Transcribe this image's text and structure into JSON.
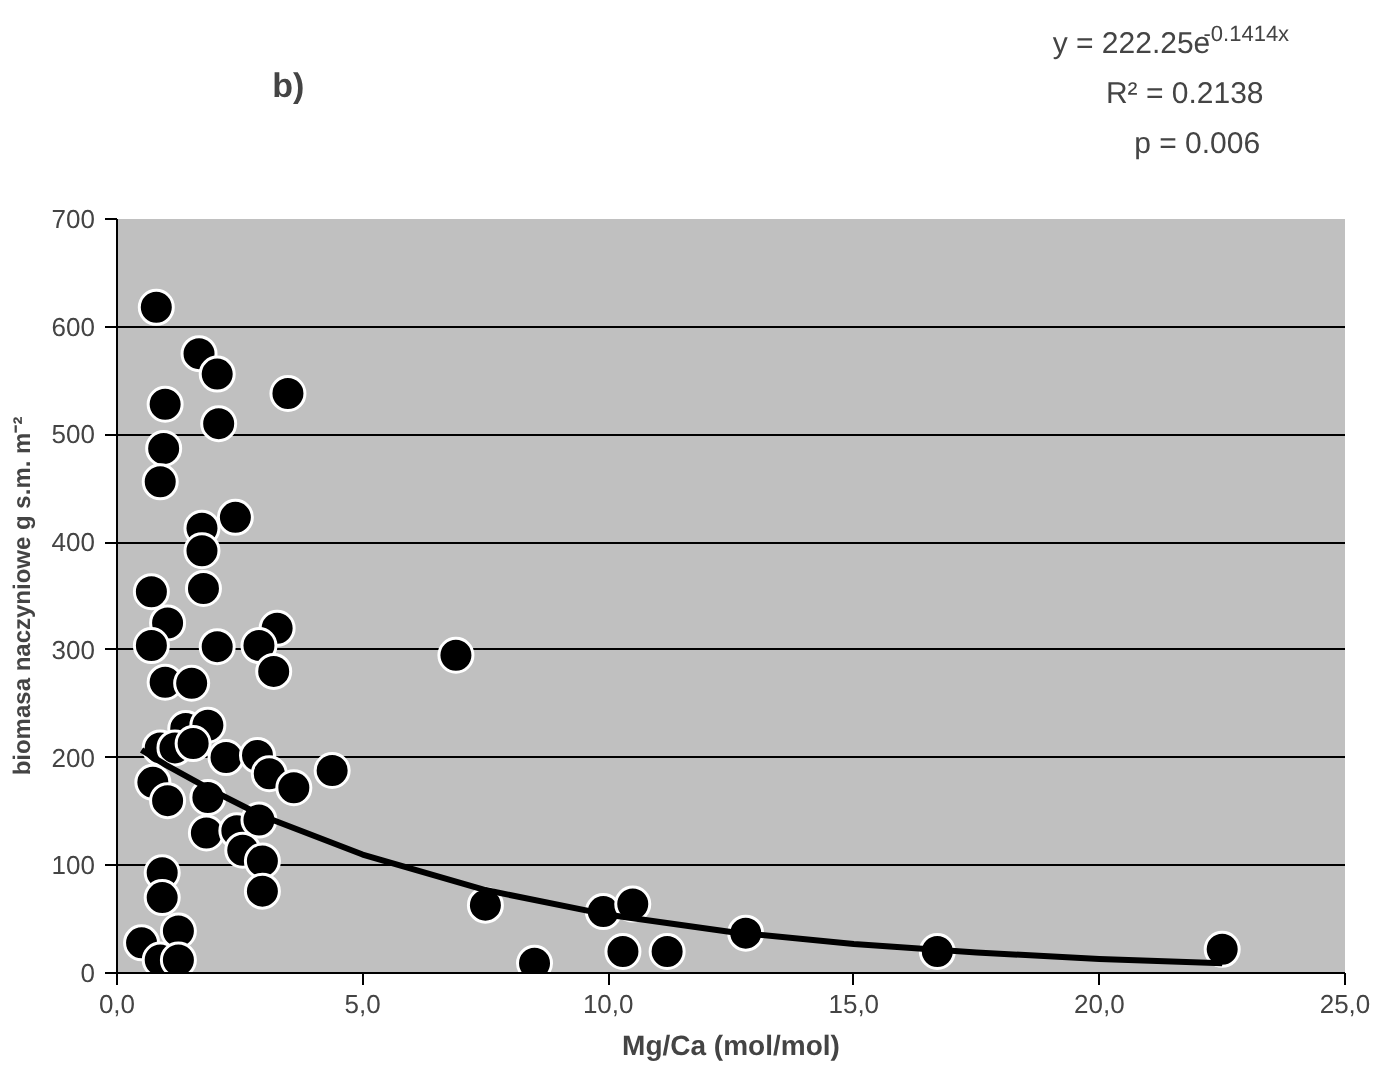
{
  "chart_data": {
    "type": "scatter",
    "title": "b)",
    "xlabel": "Mg/Ca (mol/mol)",
    "ylabel": "biomasa naczyniowe g s.m. m⁻²",
    "annotations": [
      "y = 222.25e$^{-0.1414x}$",
      "R² = 0.2138",
      "p = 0.006"
    ],
    "xlim": [
      0,
      25
    ],
    "ylim": [
      0,
      700
    ],
    "xticks": [
      {
        "value": 0,
        "label": "0,0"
      },
      {
        "value": 5,
        "label": "5,0"
      },
      {
        "value": 10,
        "label": "10,0"
      },
      {
        "value": 15,
        "label": "15,0"
      },
      {
        "value": 20,
        "label": "20,0"
      },
      {
        "value": 25,
        "label": "25,0"
      }
    ],
    "yticks": [
      0,
      100,
      200,
      300,
      400,
      500,
      600,
      700
    ],
    "grid": "y",
    "series": [
      {
        "color": "#000000",
        "marker": "circle",
        "x": [
          0.8,
          1.67,
          2.04,
          2.07,
          3.48,
          0.98,
          0.95,
          0.88,
          2.41,
          1.73,
          1.73,
          0.7,
          1.76,
          1.03,
          0.7,
          2.04,
          3.26,
          2.89,
          3.19,
          0.98,
          1.52,
          1.4,
          1.85,
          0.88,
          1.18,
          1.55,
          2.22,
          2.86,
          3.1,
          3.6,
          4.38,
          0.73,
          1.03,
          1.85,
          1.82,
          2.44,
          2.89,
          2.56,
          2.96,
          2.96,
          0.92,
          0.92,
          1.25,
          0.5,
          0.88,
          1.25,
          6.9,
          7.5,
          8.5,
          9.9,
          10.5,
          10.3,
          11.2,
          12.8,
          16.7,
          22.5
        ],
        "values": [
          618,
          575,
          556,
          510,
          538,
          528,
          487,
          456,
          423,
          413,
          392,
          354,
          357,
          325,
          304,
          303,
          320,
          304,
          280,
          270,
          269,
          227,
          230,
          209,
          209,
          213,
          200,
          202,
          185,
          172,
          188,
          177,
          160,
          163,
          130,
          132,
          142,
          114,
          104,
          76,
          93,
          70,
          39,
          28,
          12,
          12,
          295,
          63,
          9,
          57,
          64,
          20,
          20,
          37,
          20,
          22
        ]
      },
      {
        "type": "line",
        "color": "#000000",
        "line_style": "solid",
        "x": [
          0.5,
          1,
          2,
          3,
          5,
          7.5,
          10,
          12.5,
          15,
          17.5,
          20,
          22.5
        ],
        "values": [
          207,
          193,
          168,
          145,
          110,
          77,
          54,
          38,
          27,
          19,
          13,
          9
        ]
      }
    ]
  }
}
